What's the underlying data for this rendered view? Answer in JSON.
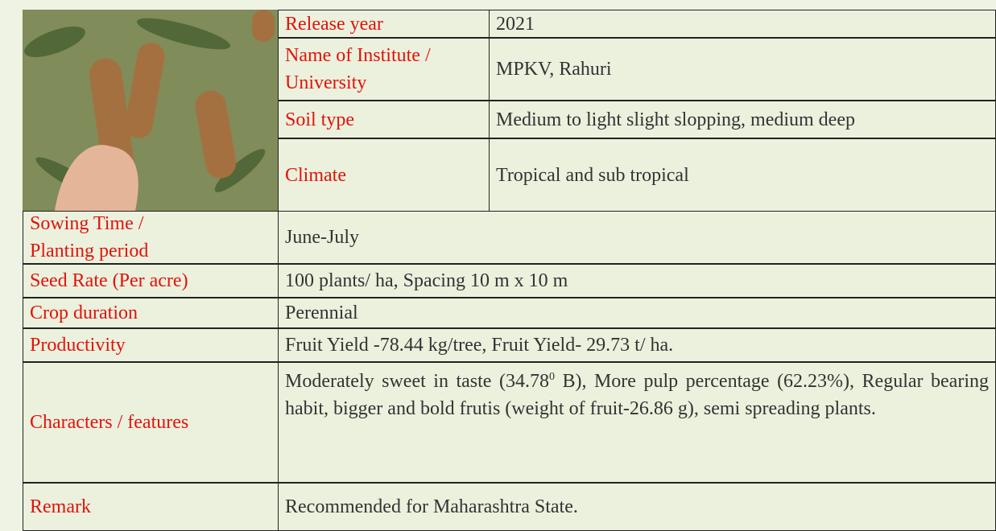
{
  "top_rows": [
    {
      "label": "Release year",
      "value": "2021"
    },
    {
      "label": "Name of Institute / University",
      "value": "MPKV, Rahuri"
    },
    {
      "label": "Soil type",
      "value": "Medium to light slight slopping, medium deep"
    },
    {
      "label": "Climate",
      "value": "Tropical and sub tropical"
    }
  ],
  "rows": [
    {
      "label": "Sowing Time / Planting period",
      "value": "June-July"
    },
    {
      "label": "Seed Rate (Per acre)",
      "value": "100 plants/ ha, Spacing 10 m x 10 m"
    },
    {
      "label": "Crop duration",
      "value": "Perennial"
    },
    {
      "label": "Productivity",
      "value": "Fruit Yield -78.44 kg/tree, Fruit Yield- 29.73 t/ ha."
    },
    {
      "label": "Characters / features",
      "value_parts": [
        "Moderately sweet in taste (34.78",
        "0",
        " B), More pulp percentage (62.23%), Regular bearing habit, bigger and bold frutis (weight of fruit-26.86 g), semi spreading plants."
      ]
    },
    {
      "label": "Remark",
      "value": "Recommended for Maharashtra State."
    }
  ]
}
